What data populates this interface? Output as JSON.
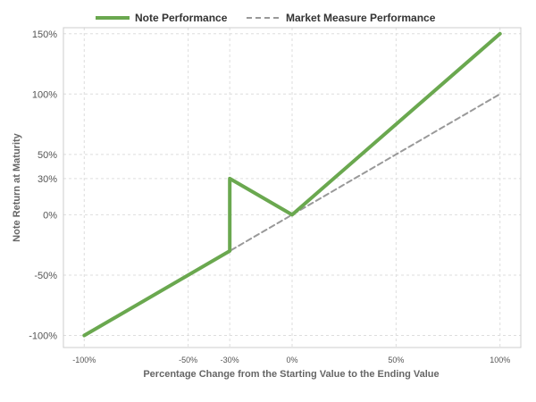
{
  "chart_data": {
    "type": "line",
    "xlabel": "Percentage Change from the Starting Value to the Ending Value",
    "ylabel": "Note Return at Maturity",
    "xlim": [
      -110,
      110
    ],
    "ylim": [
      -110,
      155
    ],
    "x_ticks": [
      -100,
      -50,
      -30,
      0,
      50,
      100
    ],
    "x_tick_labels": [
      "-100%",
      "-50%",
      "-30%",
      "0%",
      "50%",
      "100%"
    ],
    "y_ticks": [
      -100,
      -50,
      0,
      30,
      50,
      100,
      150
    ],
    "y_tick_labels": [
      "-100%",
      "-50%",
      "0%",
      "30%",
      "50%",
      "100%",
      "150%"
    ],
    "grid": true,
    "legend_position": "top",
    "series": [
      {
        "name": "Note Performance",
        "color": "#6aa84f",
        "style": "solid",
        "x": [
          -100,
          -30,
          -30,
          0,
          100
        ],
        "y": [
          -100,
          -30,
          30,
          0,
          150
        ]
      },
      {
        "name": "Market Measure Performance",
        "color": "#999999",
        "style": "dashed",
        "x": [
          -100,
          100
        ],
        "y": [
          -100,
          100
        ]
      }
    ]
  }
}
